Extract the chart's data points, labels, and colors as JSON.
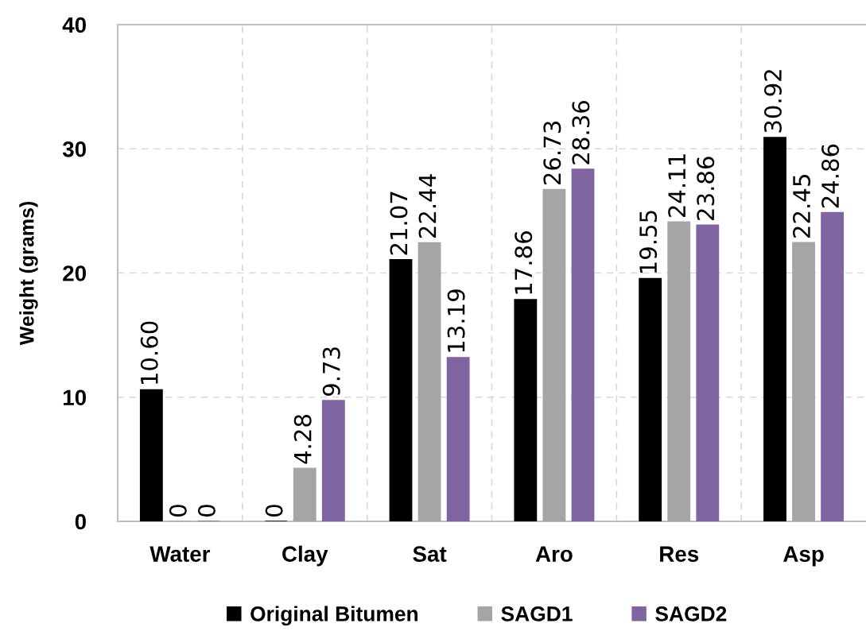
{
  "chart_data": {
    "type": "bar",
    "ylabel": "Weight (grams)",
    "categories": [
      "Water",
      "Clay",
      "Sat",
      "Aro",
      "Res",
      "Asp"
    ],
    "series": [
      {
        "name": "Original Bitumen",
        "color": "#000000",
        "values": [
          10.6,
          0,
          21.07,
          17.86,
          19.55,
          30.92
        ],
        "value_labels": [
          "10.60",
          "0",
          "21.07",
          "17.86",
          "19.55",
          "30.92"
        ]
      },
      {
        "name": "SAGD1",
        "color": "#a5a5a5",
        "values": [
          0,
          4.28,
          22.44,
          26.73,
          24.11,
          22.45
        ],
        "value_labels": [
          "0",
          "4.28",
          "22.44",
          "26.73",
          "24.11",
          "22.45"
        ]
      },
      {
        "name": "SAGD2",
        "color": "#8064a2",
        "values": [
          0,
          9.73,
          13.19,
          28.36,
          23.86,
          24.86
        ],
        "value_labels": [
          "0",
          "9.73",
          "13.19",
          "28.36",
          "23.86",
          "24.86"
        ]
      }
    ],
    "ylim": [
      0,
      40
    ],
    "yticks": [
      0,
      10,
      20,
      30,
      40
    ],
    "grid": true,
    "legend": "bottom"
  }
}
